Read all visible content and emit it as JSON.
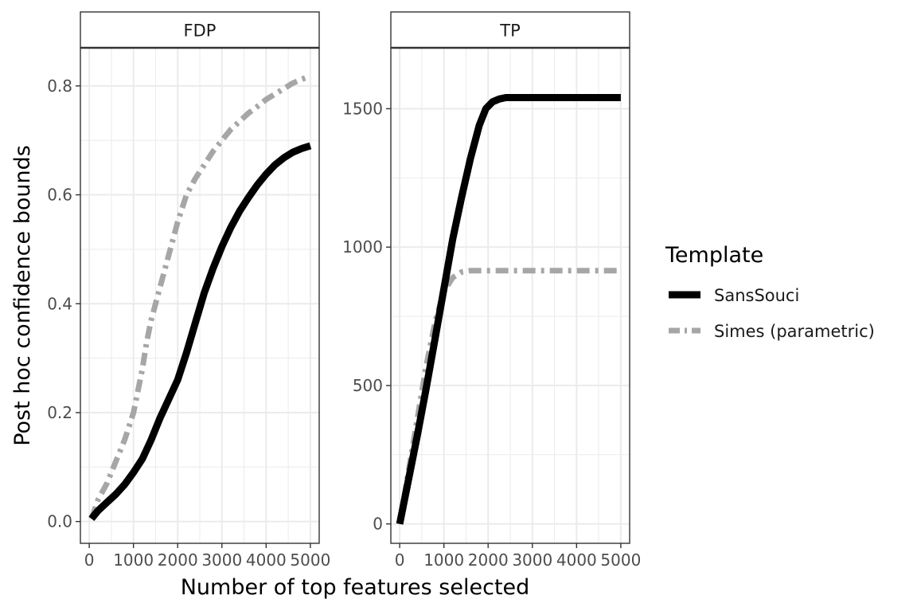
{
  "chart_data": {
    "type": "line",
    "xlabel": "Number of top features selected",
    "ylabel": "Post hoc confidence bounds",
    "legend": {
      "title": "Template",
      "placement": "right",
      "entries": [
        {
          "label": "SansSouci",
          "color": "#000000",
          "style": "solid"
        },
        {
          "label": "Simes (parametric)",
          "color": "#a6a6a6",
          "style": "dashed"
        }
      ]
    },
    "grid": true,
    "panels": [
      {
        "strip": "FDP",
        "xlim": [
          -200,
          5200
        ],
        "ylim": [
          -0.04,
          0.87
        ],
        "xticks": [
          0,
          1000,
          2000,
          3000,
          4000,
          5000
        ],
        "xtick_labels": [
          "0",
          "1000",
          "2000",
          "3000",
          "4000",
          "5000"
        ],
        "yticks": [
          0.0,
          0.2,
          0.4,
          0.6,
          0.8
        ],
        "ytick_labels": [
          "0.0",
          "0.2",
          "0.4",
          "0.6",
          "0.8"
        ],
        "series": [
          {
            "name": "SansSouci",
            "x": [
              50,
              200,
              400,
              600,
              800,
              1000,
              1200,
              1400,
              1600,
              1800,
              2000,
              2200,
              2400,
              2600,
              2800,
              3000,
              3200,
              3400,
              3600,
              3800,
              4000,
              4200,
              4400,
              4600,
              4800,
              5000
            ],
            "y": [
              0.005,
              0.02,
              0.035,
              0.05,
              0.068,
              0.09,
              0.115,
              0.15,
              0.19,
              0.225,
              0.26,
              0.31,
              0.365,
              0.42,
              0.465,
              0.505,
              0.54,
              0.57,
              0.595,
              0.618,
              0.638,
              0.655,
              0.668,
              0.678,
              0.685,
              0.69
            ]
          },
          {
            "name": "Simes (parametric)",
            "x": [
              50,
              200,
              400,
              600,
              800,
              1000,
              1200,
              1300,
              1400,
              1600,
              1800,
              2000,
              2200,
              2400,
              2600,
              2800,
              3000,
              3200,
              3400,
              3600,
              3800,
              4000,
              4200,
              4400,
              4600,
              4800,
              5000
            ],
            "y": [
              0.005,
              0.04,
              0.07,
              0.11,
              0.15,
              0.2,
              0.28,
              0.33,
              0.37,
              0.43,
              0.49,
              0.55,
              0.6,
              0.63,
              0.655,
              0.68,
              0.7,
              0.72,
              0.735,
              0.75,
              0.762,
              0.775,
              0.785,
              0.795,
              0.805,
              0.812,
              0.818
            ]
          }
        ]
      },
      {
        "strip": "TP",
        "xlim": [
          -200,
          5200
        ],
        "ylim": [
          -70,
          1720
        ],
        "xticks": [
          0,
          1000,
          2000,
          3000,
          4000,
          5000
        ],
        "xtick_labels": [
          "0",
          "1000",
          "2000",
          "3000",
          "4000",
          "5000"
        ],
        "yticks": [
          0,
          500,
          1000,
          1500
        ],
        "ytick_labels": [
          "0",
          "500",
          "1000",
          "1500"
        ],
        "series": [
          {
            "name": "SansSouci",
            "x": [
              0,
              200,
              400,
              600,
              800,
              1000,
              1200,
              1400,
              1600,
              1800,
              1950,
              2100,
              2250,
              2400,
              2600,
              3000,
              4000,
              5000
            ],
            "y": [
              0,
              160,
              320,
              490,
              670,
              850,
              1030,
              1180,
              1320,
              1440,
              1500,
              1525,
              1535,
              1540,
              1540,
              1540,
              1540,
              1540
            ]
          },
          {
            "name": "Simes (parametric)",
            "x": [
              0,
              200,
              400,
              600,
              800,
              1000,
              1200,
              1400,
              1600,
              2000,
              3000,
              4000,
              5000
            ],
            "y": [
              0,
              190,
              380,
              570,
              730,
              840,
              890,
              910,
              915,
              915,
              915,
              915,
              915
            ]
          }
        ]
      }
    ]
  }
}
